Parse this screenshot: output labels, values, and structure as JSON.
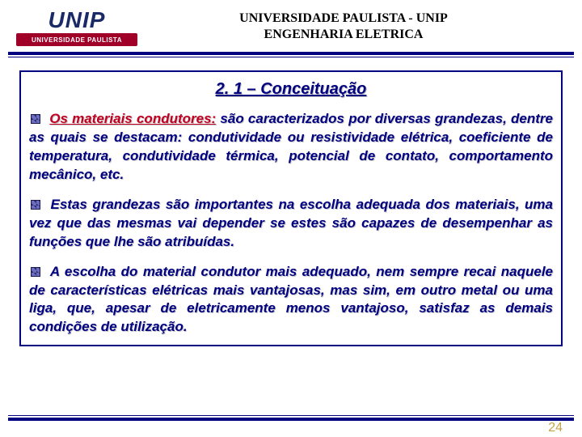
{
  "colors": {
    "navy": "#000080",
    "red": "#c00020",
    "band": "#a00028",
    "logo_text": "#1a2a66",
    "rule": "#000080",
    "pagenum": "#c9a24a"
  },
  "header": {
    "logo_main": "UNIP",
    "logo_sub": "UNIVERSIDADE PAULISTA",
    "line1": "UNIVERSIDADE PAULISTA - UNIP",
    "line2": "ENGENHARIA  ELETRICA"
  },
  "section": {
    "title": "2. 1 – Conceituação"
  },
  "paragraphs": {
    "p1_lead": "Os materiais condutores:",
    "p1_rest": " são caracterizados por diversas grandezas, dentre as quais se destacam: condutividade ou resistividade elétrica, coeficiente de temperatura, condutividade térmica, potencial de contato, comportamento mecânico, etc.",
    "p2": "Estas grandezas são importantes na escolha adequada dos materiais, uma vez que das mesmas vai depender se estes são capazes de desempenhar as funções que lhe são atribuídas.",
    "p3": "A escolha do material condutor mais adequado, nem sempre recai naquele de características elétricas mais vantajosas, mas sim, em outro metal ou uma liga, que, apesar de eletricamente menos vantajoso, satisfaz as demais condições de utilização."
  },
  "page_number": "24"
}
